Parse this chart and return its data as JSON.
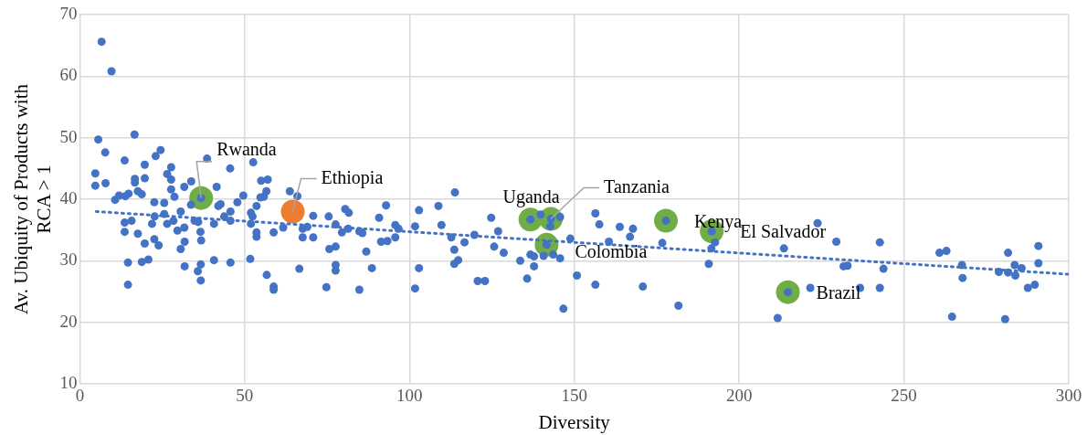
{
  "chart_data": {
    "type": "scatter",
    "xlabel": "Diversity",
    "ylabel": "Av. Ubiquity of Products with RCA > 1",
    "xlim": [
      0,
      300
    ],
    "xticks": [
      0,
      50,
      100,
      150,
      200,
      250,
      300
    ],
    "ylim": [
      10,
      70
    ],
    "yticks": [
      10,
      20,
      30,
      40,
      50,
      60,
      70
    ],
    "grid": true,
    "legend": false,
    "marker": "circle",
    "series": [
      {
        "type": "scatter",
        "color": "#70ad47",
        "x": [
          36.8,
          136.7,
          142.9,
          141.6,
          177.8,
          191.7,
          214.8
        ],
        "values": [
          40.2,
          36.7,
          36.8,
          32.6,
          36.5,
          34.8,
          24.9
        ]
      },
      {
        "type": "scatter",
        "color": "#4472c4",
        "x": [
          6.6,
          9.6,
          5.6,
          16.6,
          7.7,
          13.6,
          19.7,
          23,
          24.5,
          27.7,
          38.6,
          45.6,
          52.6,
          4.7,
          4.7,
          7.8,
          16.7,
          16.7,
          19.7,
          26.5,
          27.7,
          33.8,
          31.7,
          27.7,
          41.5,
          55,
          57,
          63.7,
          10.7,
          11.9,
          13.8,
          14.8,
          17.6,
          18.8,
          28.7,
          22.6,
          25.6,
          36.8,
          33.7,
          42,
          42.7,
          47.8,
          49.6,
          53.6,
          54.8,
          56.6,
          55.8,
          25.6,
          22.7,
          21.9,
          30.6,
          45.7,
          43.8,
          45.7,
          51.9,
          52.4,
          51.9,
          13.6,
          15.7,
          26.5,
          28.4,
          29.6,
          31.7,
          34.8,
          35.9,
          36.6,
          36.8,
          40.7,
          13.6,
          17.6,
          53.6,
          53.6,
          58.8,
          61.7,
          19.7,
          22.6,
          23.9,
          31.8,
          30.6,
          14.6,
          18.8,
          20.8,
          31.8,
          35.8,
          36.7,
          40.7,
          45.7,
          51.7,
          14.6,
          36.7,
          56.7,
          58.8,
          58.8,
          66.6,
          67.6,
          66,
          70.8,
          75.5,
          77.6,
          80.5,
          81.6,
          92.9,
          90.8,
          69,
          67.6,
          70.8,
          79.5,
          81.4,
          84.8,
          85.7,
          95.7,
          96.7,
          91.4,
          93.3,
          95.7,
          75.7,
          77.6,
          86.9,
          77.6,
          77.6,
          88.6,
          74.8,
          84.8,
          101.7,
          102.9,
          102.9,
          101.7,
          108.8,
          109.7,
          113.8,
          112.7,
          113.6,
          114.8,
          113.6,
          116.7,
          119.7,
          120.7,
          122.9,
          124.8,
          126.9,
          125.7,
          128.6,
          136.7,
          139.8,
          142.9,
          142.7,
          145.7,
          141.6,
          133.6,
          136.7,
          137.8,
          137.8,
          135.7,
          140.7,
          143.6,
          145.7,
          146.7,
          148.8,
          150.8,
          156.4,
          156.4,
          157.6,
          163.8,
          167.8,
          166.9,
          160.5,
          176.7,
          177.8,
          191.7,
          192.7,
          191.6,
          190.8,
          213.6,
          223.8,
          229.5,
          231.7,
          232.9,
          170.8,
          181.6,
          214.8,
          221.6,
          211.7,
          242.7,
          243.8,
          242.7,
          236.7,
          260.8,
          262.9,
          267.6,
          267.8,
          264.6,
          278.8,
          281.6,
          283.6,
          283.8,
          285.7,
          281.6,
          280.7,
          287.6,
          289.7,
          290.8,
          290.8
        ],
        "values": [
          65.6,
          60.8,
          49.7,
          50.5,
          47.6,
          46.3,
          45.6,
          47,
          48,
          45.2,
          46.6,
          45,
          46,
          44.2,
          42.2,
          42.6,
          43.3,
          42.7,
          43.4,
          44.1,
          43.2,
          42.9,
          42,
          41.6,
          42,
          43,
          43.2,
          41.3,
          39.9,
          40.6,
          40.5,
          40.9,
          41.3,
          40.8,
          40.4,
          39.5,
          39.4,
          40.2,
          39.1,
          38.9,
          39.2,
          39.5,
          40.6,
          38.9,
          40.3,
          41.3,
          40.4,
          37.6,
          37.2,
          36,
          38,
          38,
          37.2,
          36.5,
          37.8,
          37.2,
          36,
          36.2,
          36.5,
          36,
          36.5,
          34.9,
          35.4,
          36.5,
          36.3,
          34.7,
          33.3,
          36,
          34.7,
          34.4,
          34.6,
          33.9,
          34.6,
          35.4,
          32.8,
          33.5,
          32.5,
          33.1,
          31.9,
          29.7,
          29.8,
          30.2,
          29.1,
          28.3,
          29.4,
          30.1,
          29.7,
          30.3,
          26.1,
          26.8,
          27.7,
          25.8,
          25.3,
          28.7,
          35.2,
          40.5,
          37.3,
          37.2,
          35.9,
          38.4,
          37.8,
          39,
          37,
          35.5,
          33.8,
          33.8,
          34.6,
          35.2,
          34.8,
          34.5,
          35.8,
          35.2,
          33.1,
          33.2,
          33.8,
          31.9,
          32.3,
          31.5,
          29.3,
          28.4,
          28.8,
          25.7,
          25.3,
          25.5,
          28.8,
          38.2,
          35.6,
          38.9,
          35.8,
          41.1,
          33.8,
          31.8,
          30.1,
          29.5,
          33,
          34.2,
          26.7,
          26.7,
          37,
          34.8,
          32.3,
          31.3,
          36.7,
          37.5,
          36.8,
          35.6,
          37.1,
          32.6,
          30,
          31,
          30.7,
          29.1,
          27.1,
          30.8,
          31,
          30.4,
          22.2,
          33.6,
          27.6,
          37.7,
          26.1,
          35.9,
          35.5,
          35.2,
          33.9,
          33.1,
          32.9,
          36.5,
          34.8,
          33,
          32,
          29.5,
          32,
          36.1,
          33.1,
          29.1,
          29.2,
          25.8,
          22.7,
          24.9,
          25.6,
          20.7,
          33,
          28.7,
          25.6,
          25.6,
          31.3,
          31.6,
          29.3,
          27.2,
          20.9,
          28.2,
          28.1,
          29.3,
          27.6,
          28.8,
          31.3,
          20.5,
          25.6,
          26.1,
          32.4,
          29.6
        ]
      },
      {
        "type": "scatter",
        "color": "#ed7d31",
        "x": [
          64.6
        ],
        "values": [
          38
        ]
      },
      {
        "type": "line",
        "color": "#4472c4",
        "line_style": "dotted",
        "marker": "none",
        "x": [
          5,
          300
        ],
        "values": [
          38,
          27.8
        ]
      }
    ],
    "annotations": [
      {
        "text": "Rwanda",
        "x": 36.8,
        "y": 40.2
      },
      {
        "text": "Ethiopia",
        "x": 64.6,
        "y": 38
      },
      {
        "text": "Uganda",
        "x": 136.7,
        "y": 36.7
      },
      {
        "text": "Tanzania",
        "x": 142.9,
        "y": 36.8
      },
      {
        "text": "Colombia",
        "x": 141.6,
        "y": 32.6
      },
      {
        "text": "Kenya",
        "x": 177.8,
        "y": 36.5
      },
      {
        "text": "El Salvador",
        "x": 191.7,
        "y": 34.8
      },
      {
        "text": "Brazil",
        "x": 214.8,
        "y": 24.9
      }
    ]
  }
}
